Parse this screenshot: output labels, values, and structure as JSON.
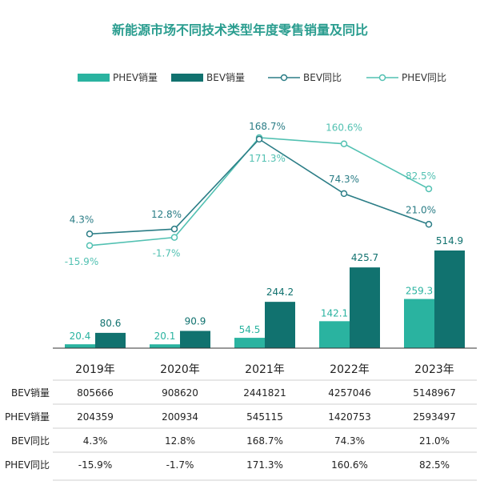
{
  "colors": {
    "title": "#2a9d8f",
    "phev_bar": "#2ab3a0",
    "bev_bar": "#11726f",
    "bev_line": "#2b7d86",
    "phev_line": "#52c1b2",
    "axis": "#333333",
    "gridline": "#cfcfcf"
  },
  "chart_data": {
    "type": "bar",
    "title": "新能源市场不同技术类型年度零售销量及同比",
    "categories": [
      "2019年",
      "2020年",
      "2021年",
      "2022年",
      "2023年"
    ],
    "bar_ylim": [
      0,
      600
    ],
    "line_ylim": [
      -25,
      185
    ],
    "legend_position": "top",
    "series": [
      {
        "name": "PHEV销量",
        "kind": "bar",
        "values": [
          20.4,
          20.1,
          54.5,
          142.1,
          259.3
        ],
        "labels": [
          "20.4",
          "20.1",
          "54.5",
          "142.1",
          "259.3"
        ]
      },
      {
        "name": "BEV销量",
        "kind": "bar",
        "values": [
          80.6,
          90.9,
          244.2,
          425.7,
          514.9
        ],
        "labels": [
          "80.6",
          "90.9",
          "244.2",
          "425.7",
          "514.9"
        ]
      },
      {
        "name": "BEV同比",
        "kind": "line",
        "values": [
          4.3,
          12.8,
          168.7,
          74.3,
          21.0
        ],
        "labels": [
          "4.3%",
          "12.8%",
          "168.7%",
          "74.3%",
          "21.0%"
        ]
      },
      {
        "name": "PHEV同比",
        "kind": "line",
        "values": [
          -15.9,
          -1.7,
          171.3,
          160.6,
          82.5
        ],
        "labels": [
          "-15.9%",
          "-1.7%",
          "171.3%",
          "160.6%",
          "82.5%"
        ]
      }
    ]
  },
  "table": {
    "rows": [
      {
        "label": "BEV销量",
        "cells": [
          "805666",
          "908620",
          "2441821",
          "4257046",
          "5148967"
        ]
      },
      {
        "label": "PHEV销量",
        "cells": [
          "204359",
          "200934",
          "545115",
          "1420753",
          "2593497"
        ]
      },
      {
        "label": "BEV同比",
        "cells": [
          "4.3%",
          "12.8%",
          "168.7%",
          "74.3%",
          "21.0%"
        ]
      },
      {
        "label": "PHEV同比",
        "cells": [
          "-15.9%",
          "-1.7%",
          "171.3%",
          "160.6%",
          "82.5%"
        ]
      }
    ]
  }
}
